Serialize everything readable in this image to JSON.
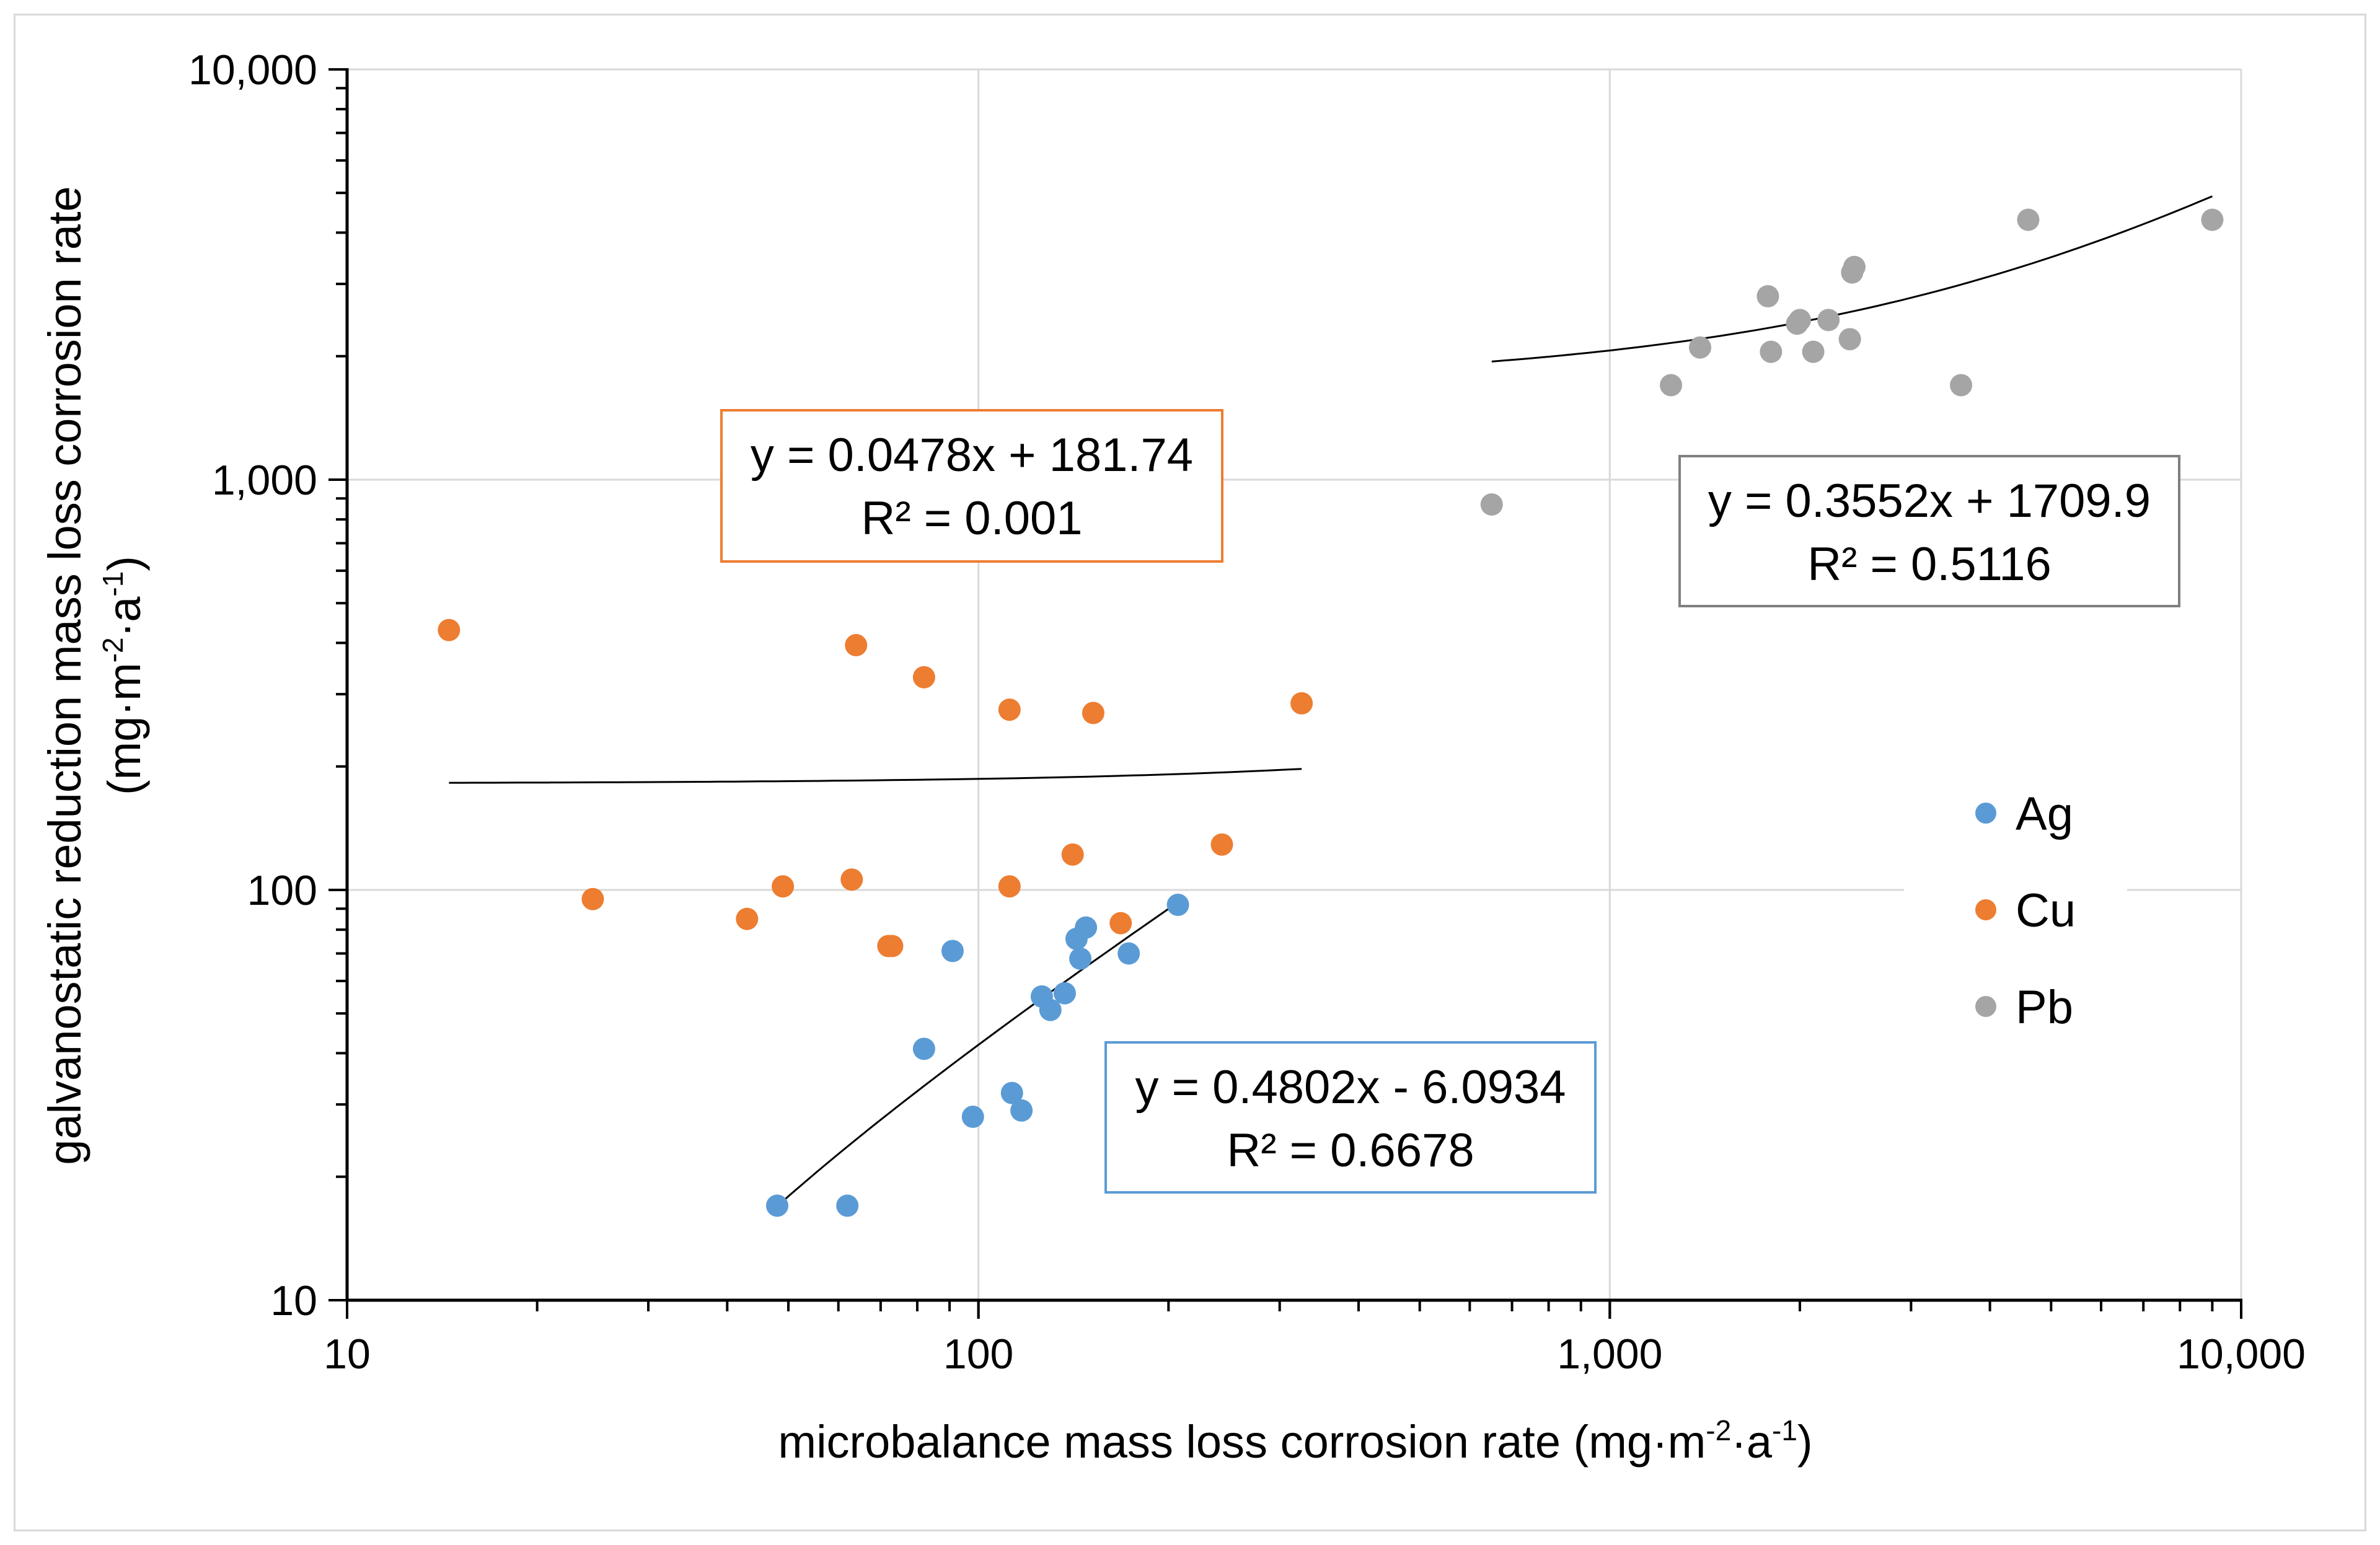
{
  "chart_data": {
    "type": "scatter",
    "title": "",
    "xscale": "log",
    "yscale": "log",
    "xlim": [
      10,
      10000
    ],
    "ylim": [
      10,
      10000
    ],
    "xlabel": "microbalance mass loss corrosion rate (mg·m",
    "xlabel_sup1": "-2",
    "xlabel_mid": "·a",
    "xlabel_sup2": "-1",
    "xlabel_end": ")",
    "ylabel_line1": "galvanostatic reduction mass loss corrosion rate",
    "ylabel_line2": "(mg·m",
    "ylabel_sup1": "-2",
    "ylabel_mid": "·a",
    "ylabel_sup2": "-1",
    "ylabel_end": ")",
    "xticks": [
      10,
      100,
      1000,
      10000
    ],
    "xtick_labels": [
      "10",
      "100",
      "1,000",
      "10,000"
    ],
    "yticks": [
      10,
      100,
      1000,
      10000
    ],
    "ytick_labels": [
      "10",
      "100",
      "1,000",
      "10,000"
    ],
    "grid": true,
    "legend_position": "right",
    "series": [
      {
        "name": "Ag",
        "color": "#5b9bd5",
        "x": [
          48,
          62,
          82,
          91,
          98,
          113,
          117,
          126,
          130,
          137,
          143,
          145,
          148,
          173,
          207
        ],
        "y": [
          17,
          17,
          41,
          71,
          28,
          32,
          29,
          55,
          51,
          56,
          76,
          68,
          81,
          70,
          92
        ],
        "trendline": {
          "x": [
            48,
            207
          ],
          "equation": "y = 0.4802x - 6.0934",
          "r2": "R² = 0.6678",
          "border": "#5b9bd5"
        }
      },
      {
        "name": "Cu",
        "color": "#ed7d31",
        "x": [
          14.5,
          24.5,
          43,
          49,
          63,
          64,
          72,
          73,
          82,
          112,
          112,
          141,
          152,
          168,
          243,
          325
        ],
        "y": [
          430,
          95,
          85,
          102,
          106,
          395,
          73,
          73,
          330,
          102,
          275,
          122,
          270,
          83,
          129,
          285
        ],
        "trendline": {
          "x": [
            14.5,
            325
          ],
          "equation": "y = 0.0478x + 181.74",
          "r2": "R² = 0.001",
          "border": "#ed7d31"
        }
      },
      {
        "name": "Pb",
        "color": "#a5a5a5",
        "x": [
          650,
          1250,
          1390,
          1780,
          1800,
          1980,
          2000,
          2100,
          2220,
          2400,
          2420,
          2440,
          3600,
          4600,
          9000
        ],
        "y": [
          870,
          1700,
          2100,
          2800,
          2050,
          2400,
          2450,
          2050,
          2450,
          2200,
          3200,
          3300,
          1700,
          4300,
          4300
        ],
        "trendline": {
          "x": [
            650,
            9000
          ],
          "equation": "y = 0.3552x + 1709.9",
          "r2": "R² = 0.5116",
          "border": "#7f7f7f"
        }
      }
    ]
  }
}
